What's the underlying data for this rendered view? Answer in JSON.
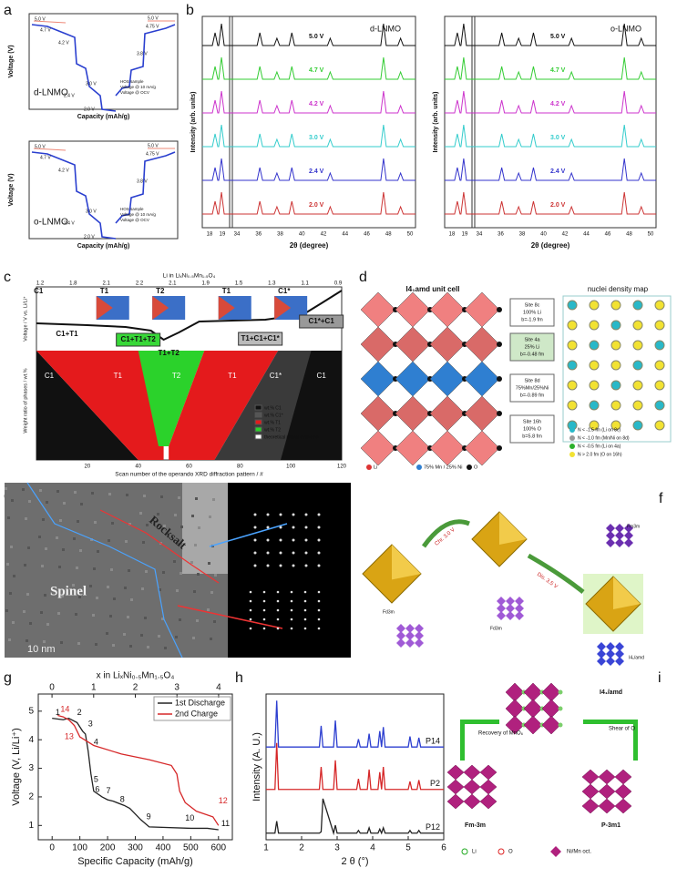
{
  "figure": {
    "a": {
      "label": "a",
      "ylabel": "Voltage (V)",
      "xlabel": "Capacity (mAh/g)",
      "legend": [
        "HOS sample",
        "Voltage @ 10 mA/g",
        "Voltage @ OCV"
      ],
      "notes": [
        "5.0 V",
        "4.7 V",
        "4.2 V",
        "2.4 V",
        "2.0 V",
        "3.0 V",
        "3.8 V",
        "4.75 V",
        "5.0 V"
      ],
      "names": [
        "d-LNMO",
        "o-LNMO"
      ]
    },
    "b": {
      "label": "b",
      "ylabel": "Intensity (arb. units)",
      "xlabel": "2θ (degree)",
      "names": [
        "d-LNMO",
        "o-LNMO"
      ],
      "voltages": [
        "5.0 V",
        "4.7 V",
        "4.2 V",
        "3.0 V",
        "2.4 V",
        "2.0 V"
      ],
      "xticks": [
        "18",
        "19",
        "34",
        "36",
        "38",
        "40",
        "42",
        "44",
        "46",
        "48",
        "50"
      ]
    },
    "c": {
      "label": "c",
      "top_axis": "Li in LiₓNi₀.₅Mn₁.₅O₄",
      "top_ticks": [
        "1.2",
        "1.8",
        "2.1",
        "2.2",
        "2.1",
        "1.9",
        "1.5",
        "1.3",
        "1.1",
        "0.9"
      ],
      "ylabel_top": "Voltage / V vs. Li/Li⁺",
      "ylabel_bottom": "Weight ratio of phases / wt.%",
      "xlabel": "Scan number of the operando XRD diffraction pattern / #",
      "xticks": [
        "20",
        "40",
        "60",
        "80",
        "100",
        "120"
      ],
      "structures": [
        "C1",
        "T1",
        "T2",
        "T1",
        "C1*",
        "C1"
      ],
      "boxes": [
        "C1+T1",
        "C1+T1+T2",
        "T1+T2",
        "T1+C1+C1*",
        "C1*+C1"
      ],
      "phases": [
        "C1",
        "T1",
        "T2",
        "T1",
        "C1*",
        "C1"
      ],
      "legend": [
        "wt.% C1",
        "wt.% C1*",
        "wt.% T1",
        "wt.% T2",
        "theoretical phase evolution"
      ]
    },
    "d": {
      "label": "d",
      "title_left": "I4₁amd unit cell",
      "title_right": "nuclei density map",
      "sites": [
        [
          "Site 8c",
          "100% Li",
          "b=-1.9 fm"
        ],
        [
          "Site 4a",
          "25% Li",
          "b=-0.48 fm"
        ],
        [
          "Site 8d",
          "75%Mn/25%Ni",
          "b=-0.89 fm"
        ],
        [
          "Site 16h",
          "100% O",
          "b=5.8 fm"
        ]
      ],
      "atoms": [
        "Li",
        "75% Mn / 25% Ni",
        "O"
      ],
      "density": [
        "N < -1.5 fm (Li on 8c)",
        "N < -1.0 fm (Mn/Ni on 8d)",
        "N < -0.5 fm (Li on 4a)",
        "N > 2.0 fm (O on 16h)"
      ]
    },
    "e": {
      "label": "e",
      "rocksalt": "Rocksalt",
      "spinel": "Spinel",
      "scale": "10 nm"
    },
    "f": {
      "label": "f",
      "groups": [
        "Fd3m",
        "Fd3m",
        "Fm3m",
        "I4₁/amd"
      ],
      "arrows": [
        "Chr. 3.0 V",
        "Dis. 3.5 V"
      ]
    },
    "i": {
      "label": "i",
      "top": "I4₁/amd",
      "left_arrow": "Recovery of MnO₆",
      "right_arrow": "Shear of O",
      "left": "Fm-3m",
      "right": "P-3m1",
      "legend": [
        "Li",
        "O",
        "Ni/Mn oct."
      ]
    }
  },
  "chart_data": [
    {
      "type": "line",
      "label": "g",
      "xlabel": "Specific Capacity (mAh/g)",
      "ylabel": "Voltage (V, Li/Li⁺)",
      "x2label": "x in LiₓNi₀.₅Mn₁.₅O₄",
      "xlim": [
        -50,
        650
      ],
      "xticks": [
        0,
        100,
        200,
        300,
        400,
        500,
        600
      ],
      "x2lim": [
        -0.33,
        4.33
      ],
      "x2ticks": [
        0,
        1,
        2,
        3,
        4
      ],
      "ylim": [
        0.5,
        5.6
      ],
      "yticks": [
        1,
        2,
        3,
        4,
        5
      ],
      "legend": "upper right",
      "series": [
        {
          "name": "1st Discharge",
          "color": "#222222",
          "x": [
            0,
            40,
            60,
            90,
            110,
            120,
            130,
            140,
            150,
            180,
            200,
            220,
            260,
            280,
            320,
            350,
            500,
            560,
            600
          ],
          "values": [
            4.75,
            4.7,
            4.75,
            4.6,
            4.3,
            4.2,
            3.6,
            2.8,
            2.2,
            2.0,
            1.9,
            1.85,
            1.7,
            1.6,
            1.2,
            0.95,
            0.9,
            0.9,
            0.85
          ]
        },
        {
          "name": "2nd Charge",
          "color": "#d62728",
          "x": [
            600,
            580,
            520,
            480,
            460,
            450,
            430,
            350,
            250,
            150,
            100,
            80,
            60,
            40,
            20
          ],
          "values": [
            1.0,
            1.3,
            1.5,
            1.8,
            2.2,
            2.8,
            3.1,
            3.3,
            3.5,
            3.8,
            4.1,
            4.5,
            4.7,
            4.8,
            4.85
          ]
        }
      ],
      "annotations": [
        "1",
        "14",
        "2",
        "13",
        "3",
        "4",
        "5",
        "6",
        "7",
        "8",
        "9",
        "10",
        "12",
        "11"
      ]
    },
    {
      "type": "line",
      "label": "h",
      "xlabel": "2 θ (°)",
      "ylabel": "Intensity (A. U.)",
      "xlim": [
        1,
        6
      ],
      "xticks": [
        1,
        2,
        3,
        4,
        5,
        6
      ],
      "ylim": [
        0,
        11
      ],
      "x": [
        1,
        1.25,
        1.3,
        1.35,
        2.5,
        2.55,
        2.6,
        2.9,
        2.95,
        3.0,
        3.55,
        3.6,
        3.65,
        3.85,
        3.9,
        3.95,
        4.15,
        4.2,
        4.25,
        4.3,
        4.35,
        5.0,
        5.05,
        5.1,
        5.25,
        5.3,
        5.35,
        6
      ],
      "series": [
        {
          "name": "P14",
          "color": "#2d3fd0",
          "values": [
            7,
            7,
            10.5,
            7,
            7,
            8.6,
            7,
            7,
            9,
            7,
            7,
            7.6,
            7,
            7,
            8,
            7,
            7,
            8.2,
            7,
            8.5,
            7,
            7,
            7.8,
            7,
            7,
            7.7,
            7,
            7
          ]
        },
        {
          "name": "P2",
          "color": "#d62728",
          "values": [
            3.8,
            3.8,
            7.3,
            3.8,
            3.8,
            5.5,
            3.8,
            3.8,
            6,
            3.8,
            3.8,
            4.6,
            3.8,
            3.8,
            5.3,
            3.8,
            3.8,
            5.1,
            3.8,
            5.5,
            3.8,
            3.8,
            4.4,
            3.8,
            3.8,
            4.5,
            3.8,
            3.8
          ]
        },
        {
          "name": "P12",
          "color": "#222222",
          "values": [
            0.5,
            0.5,
            1.4,
            0.5,
            0.5,
            0.6,
            3.1,
            0.5,
            1.1,
            0.5,
            0.5,
            0.7,
            0.5,
            0.5,
            0.9,
            0.5,
            0.5,
            0.8,
            0.5,
            0.9,
            0.5,
            0.5,
            0.7,
            0.5,
            0.5,
            0.7,
            0.5,
            0.5
          ]
        }
      ]
    }
  ]
}
